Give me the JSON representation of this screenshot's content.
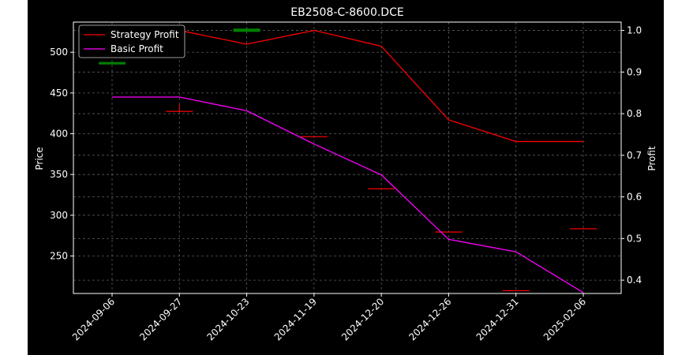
{
  "chart_data": {
    "type": "line",
    "title": "EB2508-C-8600.DCE",
    "xlabel": "",
    "ylabel": "Price",
    "y2label": "Profit",
    "categories": [
      "2024-09-06",
      "2024-09-27",
      "2024-10-23",
      "2024-11-19",
      "2024-12-20",
      "2024-12-26",
      "2024-12-31",
      "2025-02-06"
    ],
    "ylim": [
      204,
      537
    ],
    "y_ticks": [
      250,
      300,
      350,
      400,
      450,
      500
    ],
    "y2lim": [
      0.368,
      1.02
    ],
    "y2_ticks": [
      0.4,
      0.5,
      0.6,
      0.7,
      0.8,
      0.9,
      1.0
    ],
    "grid": true,
    "legend_position": "top-left",
    "candles": [
      {
        "x": "2024-09-06",
        "open": 488,
        "close": 485,
        "high": 488,
        "low": 485,
        "color": "#008000"
      },
      {
        "x": "2024-09-27",
        "open": 428,
        "close": 427,
        "high": 437,
        "low": 427,
        "color": "#ff0000"
      },
      {
        "x": "2024-10-23",
        "open": 529,
        "close": 525,
        "high": 529,
        "low": 525,
        "color": "#008000"
      },
      {
        "x": "2024-11-19",
        "open": 397,
        "close": 396,
        "high": 397,
        "low": 396,
        "color": "#ff0000"
      },
      {
        "x": "2024-12-20",
        "open": 333,
        "close": 332,
        "high": 333,
        "low": 332,
        "color": "#ff0000"
      },
      {
        "x": "2024-12-26",
        "open": 280,
        "close": 279,
        "high": 280,
        "low": 279,
        "color": "#ff0000"
      },
      {
        "x": "2024-12-31",
        "open": 208,
        "close": 207,
        "high": 208,
        "low": 207,
        "color": "#ff0000"
      },
      {
        "x": "2025-02-06",
        "open": 284,
        "close": 283,
        "high": 284,
        "low": 283,
        "color": "#ff0000"
      }
    ],
    "series": [
      {
        "name": "Strategy Profit",
        "color": "#ff0000",
        "axis": "right",
        "values": [
          1.0,
          1.0,
          0.967,
          1.0,
          0.962,
          0.785,
          0.733,
          0.733
        ]
      },
      {
        "name": "Basic Profit",
        "color": "#ff00ff",
        "axis": "right",
        "values": [
          0.84,
          0.84,
          0.807,
          0.727,
          0.653,
          0.498,
          0.468,
          0.37
        ]
      }
    ]
  }
}
